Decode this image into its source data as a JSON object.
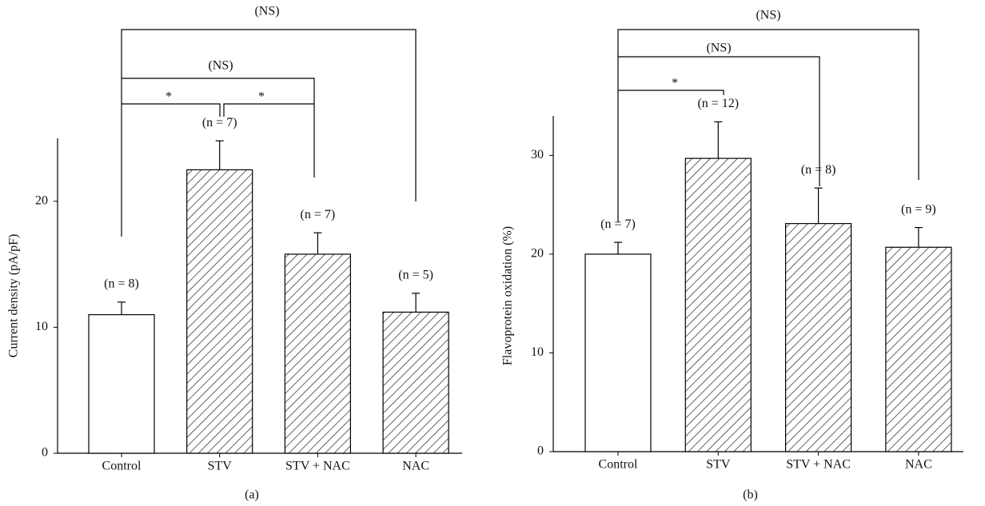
{
  "chart_data": [
    {
      "type": "bar",
      "label": "(a)",
      "y_label": "Current density (pA/pF)",
      "categories": [
        "Control",
        "STV",
        "STV + NAC",
        "NAC"
      ],
      "values": [
        11.0,
        22.5,
        15.8,
        11.2
      ],
      "errors": [
        1.0,
        2.3,
        1.7,
        1.5
      ],
      "n_labels": [
        "(n = 8)",
        "(n = 7)",
        "(n = 7)",
        "(n = 5)"
      ],
      "annotations": [
        "(NS)",
        "(NS)",
        "*",
        "*"
      ],
      "ylim": [
        0,
        25
      ],
      "yticks": [
        0,
        10,
        20
      ]
    },
    {
      "type": "bar",
      "label": "(b)",
      "y_label": "Flavoprotein oxidation (%)",
      "categories": [
        "Control",
        "STV",
        "STV + NAC",
        "NAC"
      ],
      "values": [
        20.0,
        29.7,
        23.1,
        20.7
      ],
      "errors": [
        1.2,
        3.7,
        3.6,
        2.0
      ],
      "n_labels": [
        "(n = 7)",
        "(n = 12)",
        "(n = 8)",
        "(n = 9)"
      ],
      "annotations": [
        "(NS)",
        "(NS)",
        "*"
      ],
      "ylim": [
        0,
        34
      ],
      "yticks": [
        0,
        10,
        20,
        30
      ]
    }
  ]
}
